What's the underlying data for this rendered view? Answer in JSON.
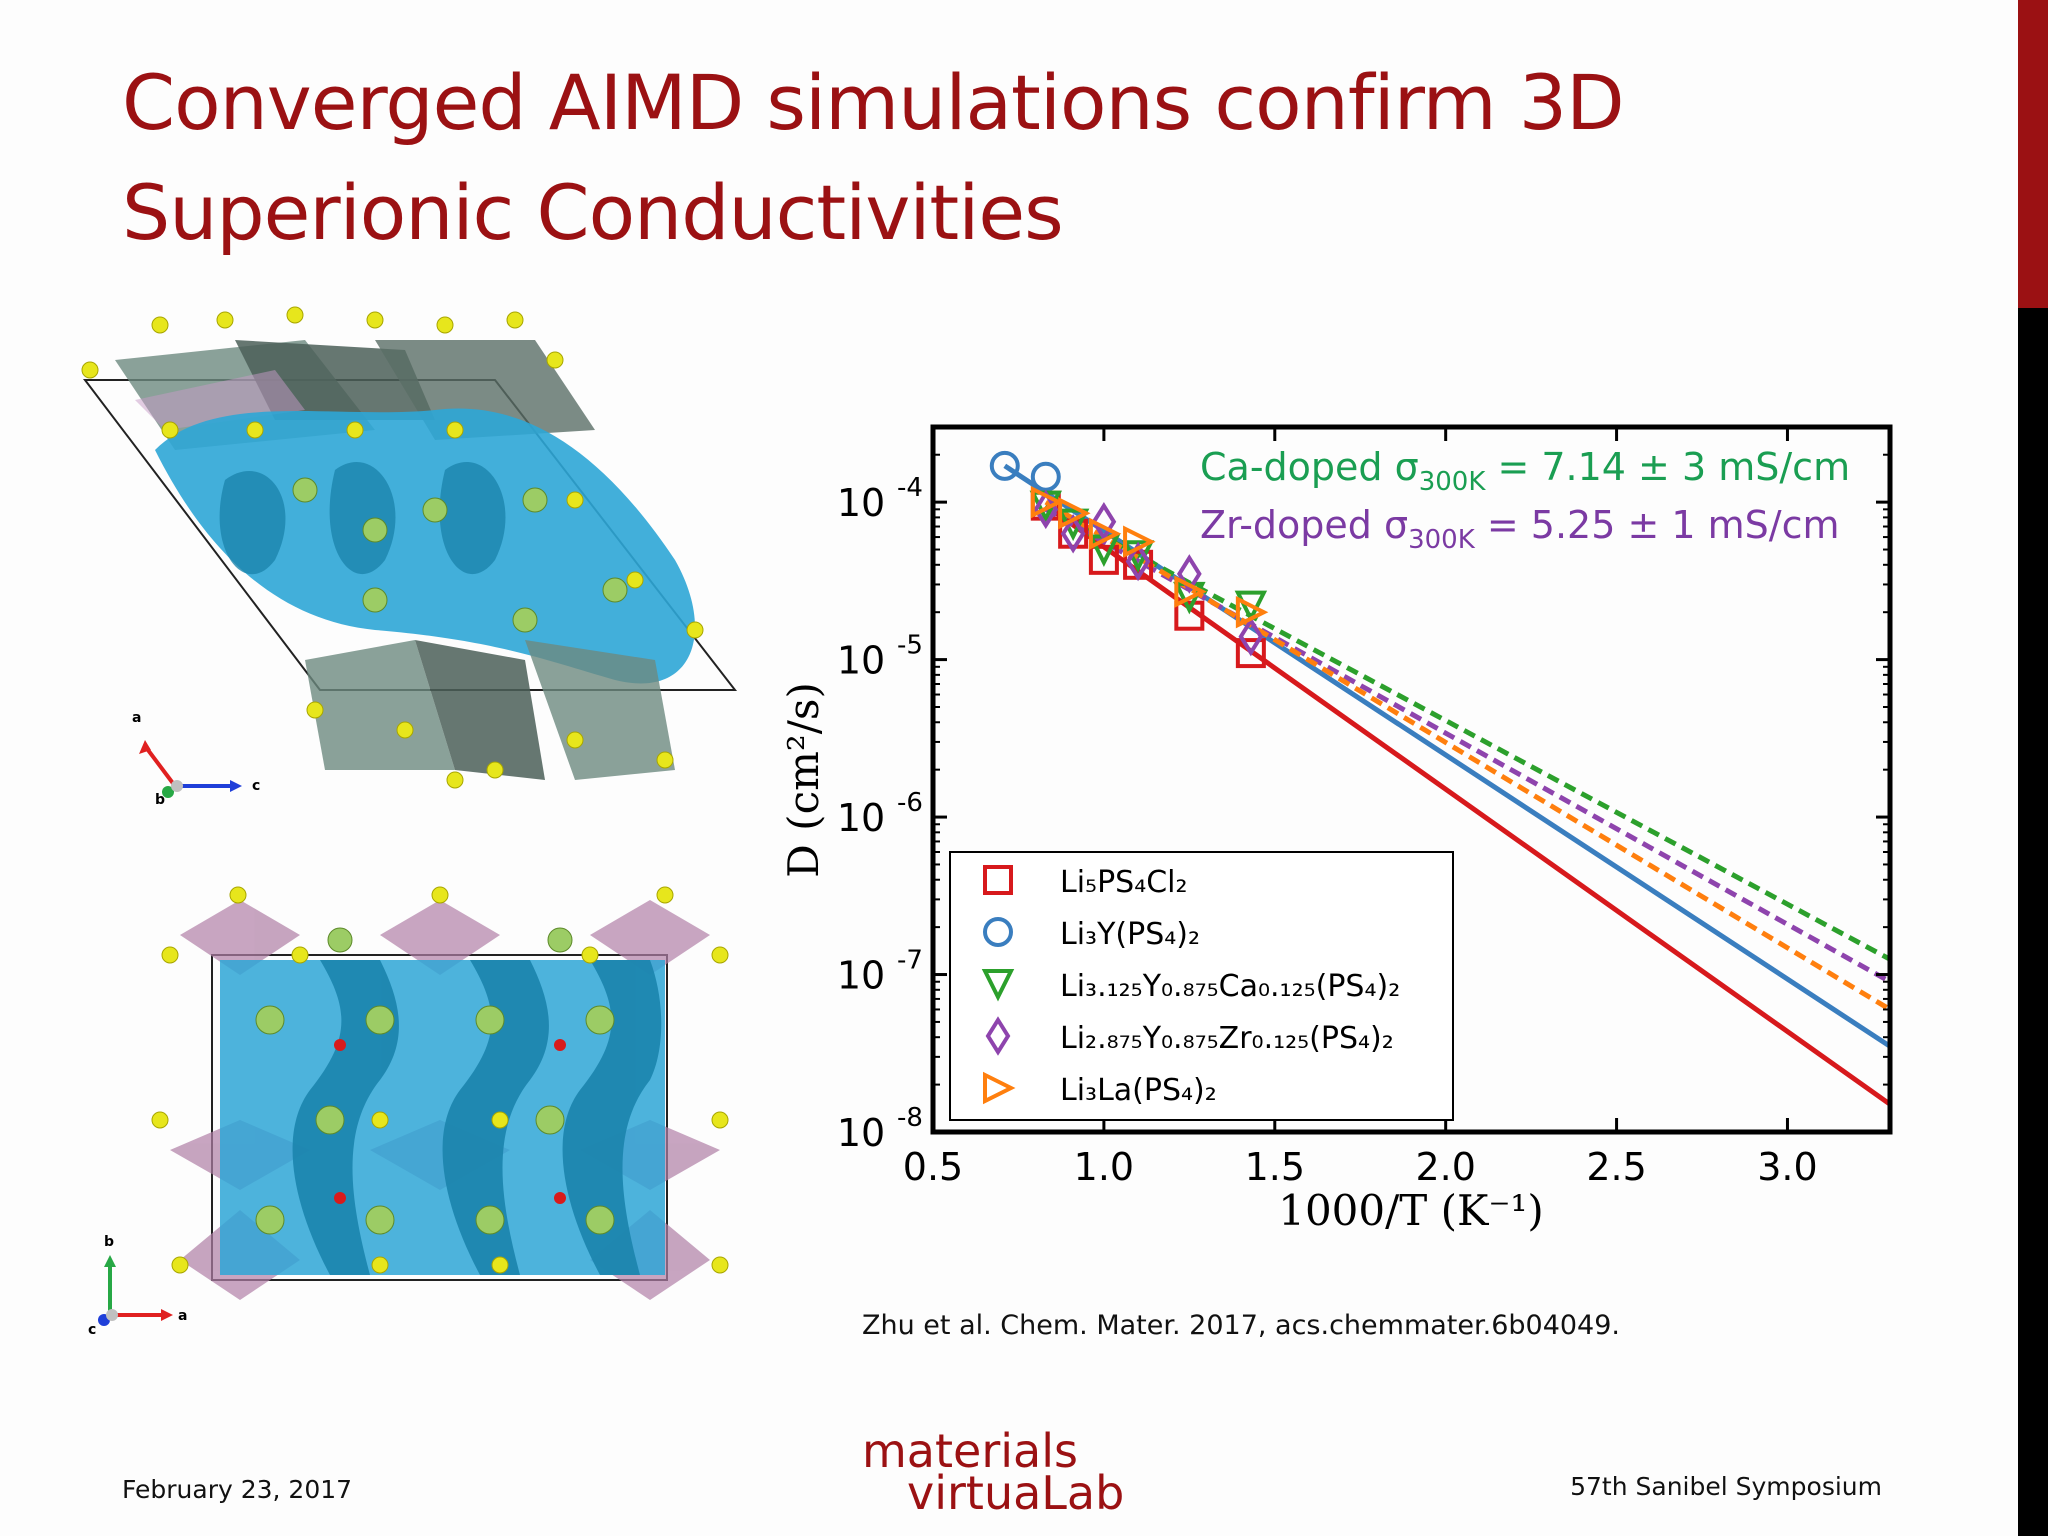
{
  "slide": {
    "title_line1": "Converged AIMD simulations confirm 3D",
    "title_line2": "Superionic Conductivities",
    "citation": "Zhu et al. Chem. Mater. 2017, acs.chemmater.6b04049.",
    "date": "February 23, 2017",
    "conference": "57th Sanibel Symposium",
    "logo_line1": "materials",
    "logo_line2": "virtuaLab",
    "colors": {
      "title": "#9b1113",
      "accent_bar": "#9b1113"
    }
  },
  "structures": {
    "top": {
      "axis_a": "a",
      "axis_b": "b",
      "axis_c": "c"
    },
    "bottom": {
      "axis_b": "b",
      "axis_a": "a",
      "axis_c": "c"
    }
  },
  "chart_data": {
    "type": "scatter",
    "xlabel": "1000/T (K⁻¹)",
    "ylabel": "D (cm²/s)",
    "y_scale": "log",
    "xlim": [
      0.5,
      3.3
    ],
    "ylim": [
      1e-08,
      0.0003
    ],
    "x_ticks": [
      "0.5",
      "1.0",
      "1.5",
      "2.0",
      "2.5",
      "3.0"
    ],
    "y_ticks": [
      {
        "value": 0.0001,
        "mant": "10",
        "exp": "-4"
      },
      {
        "value": 1e-05,
        "mant": "10",
        "exp": "-5"
      },
      {
        "value": 1e-06,
        "mant": "10",
        "exp": "-6"
      },
      {
        "value": 1e-07,
        "mant": "10",
        "exp": "-7"
      },
      {
        "value": 1e-08,
        "mant": "10",
        "exp": "-8"
      }
    ],
    "annotations": [
      {
        "text": "Ca-doped σ",
        "sub": "300K",
        "rest": " = 7.14 ± 3 mS/cm",
        "color": "#1a9e52"
      },
      {
        "text": "Zr-doped σ",
        "sub": "300K",
        "rest": " = 5.25 ± 1 mS/cm",
        "color": "#7b3aa3"
      }
    ],
    "legend_position": "bottom-left",
    "series": [
      {
        "name": "Li5PS4Cl2",
        "label": "Li₅PS₄Cl₂",
        "marker": "square",
        "color": "#d7191c",
        "line": "solid",
        "x": [
          0.83,
          0.91,
          1.0,
          1.1,
          1.25,
          1.43
        ],
        "y": [
          9.5e-05,
          6.3e-05,
          4.3e-05,
          4e-05,
          1.9e-05,
          1.1e-05
        ],
        "fit_end": [
          3.3,
          1.5e-08
        ]
      },
      {
        "name": "Li3Y(PS4)2",
        "label": "Li₃Y(PS₄)₂",
        "marker": "circle",
        "color": "#3a7ebf",
        "line": "solid",
        "x": [
          0.71,
          0.83
        ],
        "y": [
          0.00017,
          0.000145
        ],
        "fit_end": [
          3.3,
          3.5e-08
        ]
      },
      {
        "name": "Li3.125Y0.875Ca0.125(PS4)2",
        "label": "Li₃.₁₂₅Y₀.₈₇₅Ca₀.₁₂₅(PS₄)₂",
        "marker": "triangle-down",
        "color": "#2ca02c",
        "line": "dashed",
        "x": [
          0.83,
          0.91,
          1.0,
          1.1,
          1.25,
          1.43
        ],
        "y": [
          9.5e-05,
          7.3e-05,
          5e-05,
          4.6e-05,
          2.5e-05,
          2.2e-05
        ],
        "fit_end": [
          3.3,
          1.25e-07
        ]
      },
      {
        "name": "Li2.875Y0.875Zr0.125(PS4)2",
        "label": "Li₂.₈₇₅Y₀.₈₇₅Zr₀.₁₂₅(PS₄)₂",
        "marker": "diamond",
        "color": "#8e44ad",
        "line": "dashed",
        "x": [
          0.83,
          0.91,
          1.0,
          1.1,
          1.25,
          1.43
        ],
        "y": [
          9e-05,
          6.3e-05,
          7.5e-05,
          4.2e-05,
          3.5e-05,
          1.4e-05
        ],
        "fit_end": [
          3.3,
          9e-08
        ]
      },
      {
        "name": "Li3La(PS4)2",
        "label": "Li₃La(PS₄)₂",
        "marker": "triangle-right",
        "color": "#ff7f0e",
        "line": "dashed",
        "x": [
          0.83,
          0.91,
          1.0,
          1.1,
          1.25,
          1.43
        ],
        "y": [
          0.0001,
          8.5e-05,
          6.3e-05,
          5.6e-05,
          2.7e-05,
          2e-05
        ],
        "fit_end": [
          3.3,
          6e-08
        ]
      }
    ]
  }
}
